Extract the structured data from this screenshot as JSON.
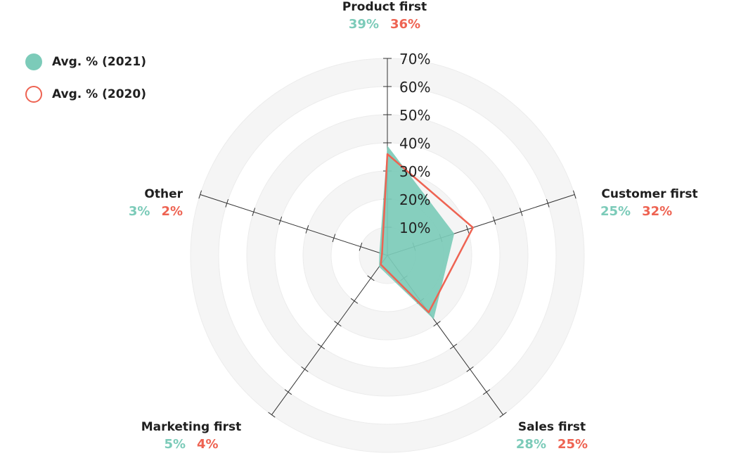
{
  "chart_data": {
    "type": "radar",
    "categories": [
      "Product first",
      "Customer first",
      "Sales first",
      "Marketing first",
      "Other"
    ],
    "series": [
      {
        "name": "Avg. % (2021)",
        "values": [
          39,
          25,
          28,
          5,
          3
        ],
        "color": "#7ccbb9",
        "style": "filled"
      },
      {
        "name": "Avg. % (2020)",
        "values": [
          36,
          32,
          25,
          4,
          2
        ],
        "color": "#ee6352",
        "style": "outline"
      }
    ],
    "value_labels": [
      {
        "v2021": "39%",
        "v2020": "36%"
      },
      {
        "v2021": "25%",
        "v2020": "32%"
      },
      {
        "v2021": "28%",
        "v2020": "25%"
      },
      {
        "v2021": "5%",
        "v2020": "4%"
      },
      {
        "v2021": "3%",
        "v2020": "2%"
      }
    ],
    "ticks": [
      10,
      20,
      30,
      40,
      50,
      60,
      70
    ],
    "tick_labels": [
      "10%",
      "20%",
      "30%",
      "40%",
      "50%",
      "60%",
      "70%"
    ],
    "rlim": [
      0,
      70
    ],
    "grid": true,
    "legend_position": "top-left"
  },
  "legend": {
    "items": [
      "Avg. % (2021)",
      "Avg. % (2020)"
    ]
  }
}
